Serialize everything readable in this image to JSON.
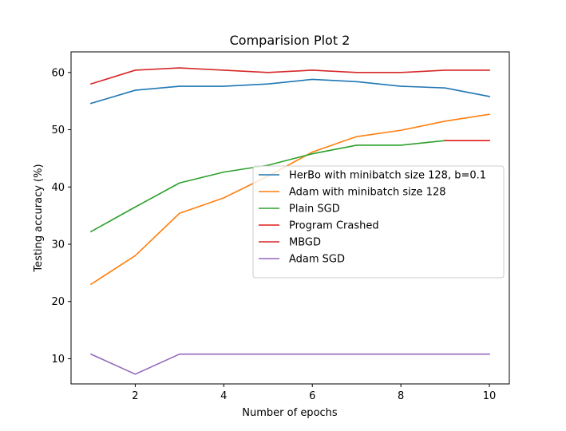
{
  "chart_data": {
    "type": "line",
    "title": "Comparision Plot 2",
    "xlabel": "Number of epochs",
    "ylabel": "Testing accuracy (%)",
    "xlim": [
      0.55,
      10.45
    ],
    "ylim": [
      5.6,
      63.6
    ],
    "xticks": [
      2,
      4,
      6,
      8,
      10
    ],
    "yticks": [
      10,
      20,
      30,
      40,
      50,
      60
    ],
    "grid": false,
    "legend_position": "center-right",
    "series": [
      {
        "name": "HerBo with minibatch size 128, b=0.1",
        "color": "#1f77b4",
        "x": [
          1,
          2,
          3,
          4,
          5,
          6,
          7,
          8,
          9,
          10
        ],
        "y": [
          54.6,
          56.9,
          57.6,
          57.6,
          58.0,
          58.8,
          58.4,
          57.6,
          57.3,
          55.8
        ]
      },
      {
        "name": "Adam with minibatch size 128",
        "color": "#ff7f0e",
        "x": [
          1,
          2,
          3,
          4,
          5,
          6,
          7,
          8,
          9,
          10
        ],
        "y": [
          23.0,
          28.0,
          35.4,
          38.1,
          41.9,
          46.1,
          48.8,
          49.9,
          51.5,
          52.7
        ]
      },
      {
        "name": "Plain SGD",
        "color": "#2ca02c",
        "x": [
          1,
          2,
          3,
          4,
          5,
          6,
          7,
          8,
          9
        ],
        "y": [
          32.2,
          36.5,
          40.7,
          42.6,
          43.8,
          45.8,
          47.3,
          47.3,
          48.1
        ]
      },
      {
        "name": "Program Crashed",
        "color": "#e31a1c",
        "x": [
          9,
          10
        ],
        "y": [
          48.1,
          48.1
        ]
      },
      {
        "name": "MBGD",
        "color": "#d62728",
        "x": [
          1,
          2,
          3,
          4,
          5,
          6,
          7,
          8,
          9,
          10
        ],
        "y": [
          58.0,
          60.4,
          60.8,
          60.4,
          60.0,
          60.4,
          60.0,
          60.0,
          60.4,
          60.4
        ]
      },
      {
        "name": "Adam SGD",
        "color": "#9467bd",
        "x": [
          1,
          2,
          3,
          4,
          5,
          6,
          7,
          8,
          9,
          10
        ],
        "y": [
          10.8,
          7.3,
          10.8,
          10.8,
          10.8,
          10.8,
          10.8,
          10.8,
          10.8,
          10.8
        ]
      }
    ]
  }
}
